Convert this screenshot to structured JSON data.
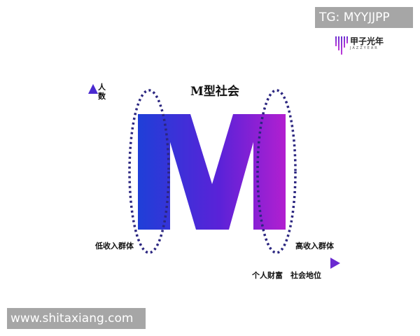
{
  "watermarks": {
    "telegram": "TG: MYYJJPP",
    "site": "www.shitaxiang.com"
  },
  "logo": {
    "name": "甲子光年",
    "sub": "JAZZYEAR"
  },
  "diagram": {
    "title": "M型社会",
    "y_axis_label": "人数",
    "x_axis_label_1": "个人财富",
    "x_axis_label_2": "社会地位",
    "low_group_label": "低收入群体",
    "high_group_label": "高收入群体",
    "colors": {
      "gradient_start": "#1f3fd8",
      "gradient_end": "#b21fd0",
      "axis": "#2a2aa8",
      "ellipse": "#2b2680"
    }
  }
}
